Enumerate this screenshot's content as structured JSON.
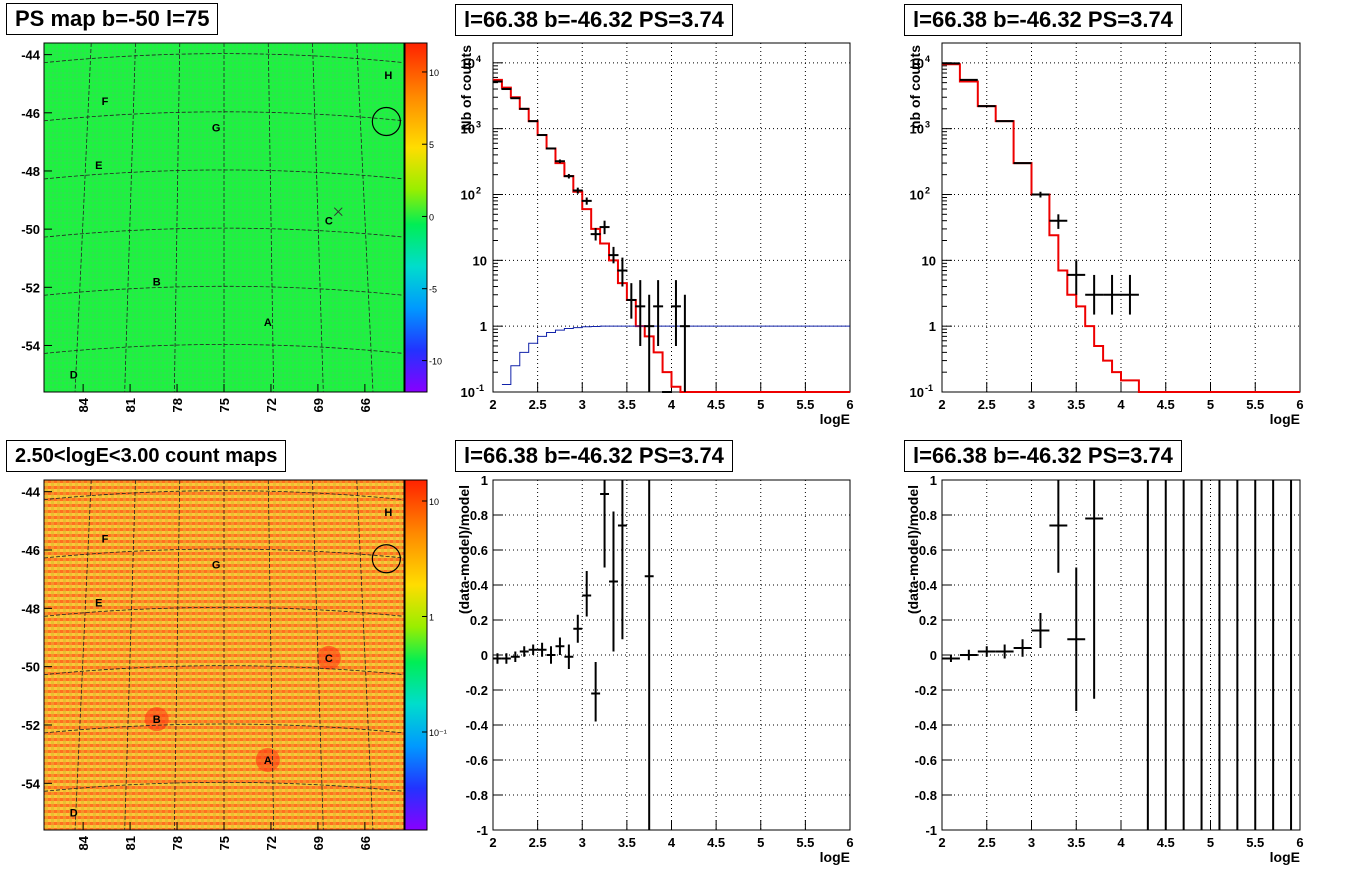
{
  "panels": {
    "ps_map": {
      "title": "PS map b=-50 l=75",
      "y_ticks": [
        "-44",
        "-46",
        "-48",
        "-50",
        "-52",
        "-54"
      ],
      "x_ticks": [
        "84",
        "81",
        "78",
        "75",
        "72",
        "69",
        "66"
      ],
      "colorbar_ticks": [
        "10",
        "5",
        "0",
        "-5",
        "-10"
      ],
      "colors": {
        "background": "#22ee44",
        "colorbar_top": "#ff2200",
        "colorbar_bottom": "#8800ff"
      }
    },
    "count_map": {
      "title": "2.50<logE<3.00 count maps",
      "y_ticks": [
        "-44",
        "-46",
        "-48",
        "-50",
        "-52",
        "-54"
      ],
      "x_ticks": [
        "84",
        "81",
        "78",
        "75",
        "72",
        "69",
        "66"
      ],
      "colorbar_ticks": [
        "10",
        "1",
        "10⁻¹"
      ],
      "colors": {
        "background": "#f4a030",
        "colorbar_top": "#ff2200",
        "colorbar_bottom": "#8800ff"
      }
    },
    "spec1": {
      "title": "l=66.38 b=-46.32 PS=3.74"
    },
    "spec2": {
      "title": "l=66.38 b=-46.32 PS=3.74"
    },
    "res1": {
      "title": "l=66.38 b=-46.32 PS=3.74"
    },
    "res2": {
      "title": "l=66.38 b=-46.32 PS=3.74"
    }
  },
  "map_labels": [
    {
      "text": "H",
      "l": 64.5,
      "b": -44.7
    },
    {
      "text": "F",
      "l": 82.6,
      "b": -45.6
    },
    {
      "text": "G",
      "l": 75.5,
      "b": -46.5
    },
    {
      "text": "E",
      "l": 83.0,
      "b": -47.8
    },
    {
      "text": "C",
      "l": 68.3,
      "b": -49.7
    },
    {
      "text": "B",
      "l": 79.3,
      "b": -51.8
    },
    {
      "text": "A",
      "l": 72.2,
      "b": -53.2
    },
    {
      "text": "D",
      "l": 84.6,
      "b": -55.0
    }
  ],
  "map_marker": {
    "l": 64.5,
    "b": -46.3,
    "circle": true,
    "cross_l": 67.7,
    "cross_b": -49.4
  },
  "chart_data": [
    {
      "type": "line",
      "title": "PS map b=-50 l=75",
      "kind": "heatmap",
      "xlabel": "",
      "ylabel": "",
      "xlim": [
        86.5,
        63.5
      ],
      "ylim": [
        -55.6,
        -43.6
      ]
    },
    {
      "type": "line",
      "title": "l=66.38 b=-46.32 PS=3.74",
      "xlabel": "logE",
      "ylabel": "Nb of counts",
      "xlim": [
        2,
        6
      ],
      "ylim": [
        0.1,
        20000
      ],
      "log_y": true,
      "x_ticks": [
        "2",
        "2.5",
        "3",
        "3.5",
        "4",
        "4.5",
        "5",
        "5.5",
        "6"
      ],
      "y_ticks": [
        {
          "label": "10",
          "sup": "-1",
          "value": 0.1
        },
        {
          "label": "1",
          "sup": "",
          "value": 1
        },
        {
          "label": "10",
          "sup": "",
          "value": 10
        },
        {
          "label": "10",
          "sup": "2",
          "value": 100
        },
        {
          "label": "10",
          "sup": "3",
          "value": 1000
        },
        {
          "label": "10",
          "sup": "4",
          "value": 10000
        }
      ],
      "grid": true,
      "series": [
        {
          "color": "#ee0000",
          "style": "step",
          "edges": [
            2.0,
            2.1,
            2.2,
            2.3,
            2.4,
            2.5,
            2.6,
            2.7,
            2.8,
            2.9,
            3.0,
            3.1,
            3.2,
            3.3,
            3.4,
            3.5,
            3.6,
            3.7,
            3.8,
            3.9,
            4.0,
            4.1,
            6.0
          ],
          "values": [
            5500,
            4200,
            3000,
            2000,
            1300,
            800,
            500,
            300,
            190,
            110,
            60,
            30,
            18,
            10,
            4.5,
            2.5,
            1.0,
            0.7,
            0.4,
            0.2,
            0.12,
            0.1
          ]
        },
        {
          "color": "#1122aa",
          "style": "step",
          "edges": [
            2.1,
            2.2,
            2.3,
            2.4,
            2.5,
            2.6,
            2.7,
            2.8,
            2.9,
            3.0,
            3.1,
            3.2,
            6.0
          ],
          "values": [
            0.13,
            0.25,
            0.4,
            0.55,
            0.7,
            0.8,
            0.87,
            0.92,
            0.95,
            0.98,
            0.99,
            1.0
          ]
        },
        {
          "color": "#000000",
          "style": "errorbar",
          "x": [
            2.05,
            2.15,
            2.25,
            2.35,
            2.45,
            2.55,
            2.65,
            2.75,
            2.85,
            2.95,
            3.05,
            3.15,
            3.25,
            3.35,
            3.45,
            3.55,
            3.65,
            3.75,
            3.85,
            3.95,
            4.05,
            4.15
          ],
          "y": [
            5200,
            4000,
            2900,
            2000,
            1300,
            800,
            500,
            320,
            190,
            115,
            80,
            25,
            32,
            12,
            7,
            2.5,
            2,
            1,
            2,
            0.1,
            2,
            1
          ],
          "yerr_lo": [
            0,
            0,
            0,
            0,
            0,
            0,
            0,
            20,
            15,
            12,
            10,
            5,
            7,
            3,
            3,
            1.2,
            1.5,
            0.9,
            1.5,
            0,
            1.5,
            0.95
          ],
          "yerr_hi": [
            0,
            0,
            0,
            0,
            0,
            0,
            0,
            20,
            15,
            12,
            10,
            6,
            8,
            4,
            4,
            2,
            3,
            2,
            3,
            0,
            3,
            2
          ]
        }
      ]
    },
    {
      "type": "line",
      "title": "l=66.38 b=-46.32 PS=3.74",
      "xlabel": "logE",
      "ylabel": "nb of counts",
      "xlim": [
        2,
        6
      ],
      "ylim": [
        0.1,
        20000
      ],
      "log_y": true,
      "x_ticks": [
        "2",
        "2.5",
        "3",
        "3.5",
        "4",
        "4.5",
        "5",
        "5.5",
        "6"
      ],
      "y_ticks": [
        {
          "label": "10",
          "sup": "-1",
          "value": 0.1
        },
        {
          "label": "1",
          "sup": "",
          "value": 1
        },
        {
          "label": "10",
          "sup": "",
          "value": 10
        },
        {
          "label": "10",
          "sup": "2",
          "value": 100
        },
        {
          "label": "10",
          "sup": "3",
          "value": 1000
        },
        {
          "label": "10",
          "sup": "4",
          "value": 10000
        }
      ],
      "grid": true,
      "series": [
        {
          "color": "#ee0000",
          "style": "step",
          "edges": [
            2.0,
            2.2,
            2.4,
            2.6,
            2.8,
            3.0,
            3.2,
            3.3,
            3.4,
            3.5,
            3.6,
            3.7,
            3.8,
            3.9,
            4.0,
            4.2,
            6.0
          ],
          "values": [
            9500,
            5200,
            2200,
            1300,
            300,
            100,
            24,
            7,
            3,
            2,
            1,
            0.5,
            0.3,
            0.2,
            0.15,
            0.1
          ]
        },
        {
          "color": "#000000",
          "style": "errorbar",
          "x": [
            2.1,
            2.3,
            2.5,
            2.7,
            2.9,
            3.1,
            3.3,
            3.5,
            3.7,
            3.9,
            4.1
          ],
          "x_half": [
            0.1,
            0.1,
            0.1,
            0.1,
            0.1,
            0.1,
            0.1,
            0.1,
            0.1,
            0.1,
            0.1
          ],
          "y": [
            9800,
            5500,
            2200,
            1300,
            300,
            100,
            40,
            6,
            3,
            3,
            3
          ],
          "yerr_lo": [
            0,
            0,
            0,
            0,
            0,
            10,
            10,
            3,
            1.5,
            1.5,
            1.5
          ],
          "yerr_hi": [
            0,
            0,
            0,
            0,
            0,
            10,
            10,
            4,
            3,
            3,
            3
          ]
        }
      ]
    },
    {
      "type": "line",
      "title": "2.50<logE<3.00 count maps",
      "kind": "heatmap",
      "xlabel": "",
      "ylabel": "",
      "xlim": [
        86.5,
        63.5
      ],
      "ylim": [
        -55.6,
        -43.6
      ]
    },
    {
      "type": "scatter",
      "title": "l=66.38 b=-46.32 PS=3.74",
      "xlabel": "logE",
      "ylabel": "(data-model)/model",
      "xlim": [
        2,
        6
      ],
      "ylim": [
        -1,
        1
      ],
      "x_ticks": [
        "2",
        "2.5",
        "3",
        "3.5",
        "4",
        "4.5",
        "5",
        "5.5",
        "6"
      ],
      "y_ticks": [
        "1",
        "0.8",
        "0.6",
        "0.4",
        "0.2",
        "0",
        "-0.2",
        "-0.4",
        "-0.6",
        "-0.8",
        "-1"
      ],
      "grid": true,
      "series": [
        {
          "color": "#000000",
          "style": "errorbar",
          "x": [
            2.05,
            2.15,
            2.25,
            2.35,
            2.45,
            2.55,
            2.65,
            2.75,
            2.85,
            2.95,
            3.05,
            3.15,
            3.25,
            3.35,
            3.45,
            3.75
          ],
          "x_half": [
            0.05,
            0.05,
            0.05,
            0.05,
            0.05,
            0.05,
            0.05,
            0.05,
            0.05,
            0.05,
            0.05,
            0.05,
            0.05,
            0.05,
            0.05,
            0.05
          ],
          "y": [
            -0.02,
            -0.02,
            -0.01,
            0.02,
            0.03,
            0.03,
            0.0,
            0.05,
            -0.01,
            0.15,
            0.34,
            -0.22,
            0.92,
            0.42,
            0.74,
            0.45
          ],
          "yerr_lo": [
            0.03,
            0.03,
            0.03,
            0.03,
            0.03,
            0.04,
            0.05,
            0.05,
            0.07,
            0.08,
            0.12,
            0.16,
            0.42,
            0.4,
            0.65,
            1.45
          ],
          "yerr_hi": [
            0.03,
            0.03,
            0.03,
            0.03,
            0.03,
            0.04,
            0.05,
            0.05,
            0.07,
            0.08,
            0.14,
            0.18,
            0.3,
            0.4,
            0.5,
            0.6
          ]
        }
      ]
    },
    {
      "type": "scatter",
      "title": "l=66.38 b=-46.32 PS=3.74",
      "xlabel": "logE",
      "ylabel": "(data-model)/model",
      "xlim": [
        2,
        6
      ],
      "ylim": [
        -1,
        1
      ],
      "x_ticks": [
        "2",
        "2.5",
        "3",
        "3.5",
        "4",
        "4.5",
        "5",
        "5.5",
        "6"
      ],
      "y_ticks": [
        "1",
        "0.8",
        "0.6",
        "0.4",
        "0.2",
        "0",
        "-0.2",
        "-0.4",
        "-0.6",
        "-0.8",
        "-1"
      ],
      "grid": true,
      "series": [
        {
          "color": "#000000",
          "style": "errorbar",
          "x": [
            2.1,
            2.3,
            2.5,
            2.7,
            2.9,
            3.1,
            3.3,
            3.5,
            3.7,
            4.3,
            4.5,
            4.7,
            4.9,
            5.1,
            5.3,
            5.5,
            5.7,
            5.9
          ],
          "x_half": [
            0.1,
            0.1,
            0.1,
            0.1,
            0.1,
            0.1,
            0.1,
            0.1,
            0.1,
            0,
            0,
            0,
            0,
            0,
            0,
            0,
            0,
            0
          ],
          "y": [
            -0.02,
            0.0,
            0.02,
            0.02,
            0.04,
            0.14,
            0.74,
            0.09,
            0.78,
            0,
            0,
            0,
            0,
            0,
            0,
            0,
            0,
            0
          ],
          "yerr_lo": [
            0.02,
            0.03,
            0.03,
            0.04,
            0.05,
            0.1,
            0.27,
            0.41,
            1.03,
            1.2,
            1.2,
            1.2,
            1.2,
            1.2,
            1.2,
            1.2,
            1.2,
            1.2
          ],
          "yerr_hi": [
            0.02,
            0.03,
            0.03,
            0.04,
            0.05,
            0.1,
            0.3,
            0.41,
            0.3,
            1.2,
            1.2,
            1.2,
            1.2,
            1.2,
            1.2,
            1.2,
            1.2,
            1.2
          ]
        }
      ]
    }
  ]
}
